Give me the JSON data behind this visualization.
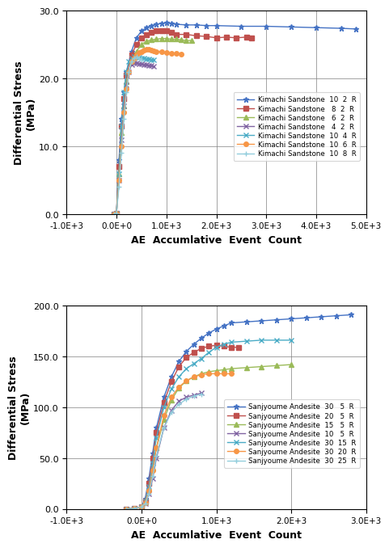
{
  "chart1": {
    "ylabel": "Differential Stress",
    "ylabel2": "(MPa)",
    "xlabel": "AE  Accumlative  Event  Count",
    "xlim": [
      -1000,
      5000
    ],
    "ylim": [
      0.0,
      30.0
    ],
    "yticks": [
      0.0,
      10.0,
      20.0,
      30.0
    ],
    "xticks": [
      -1000,
      0,
      1000,
      2000,
      3000,
      4000,
      5000
    ],
    "xtick_labels": [
      "-1.0E+3",
      "0.0E+0",
      "1.0E+3",
      "2.0E+3",
      "3.0E+3",
      "4.0E+3",
      "5.0E+3"
    ],
    "series": [
      {
        "label": "Kimachi Sandstone  10  2  R",
        "color": "#4472C4",
        "marker": "*",
        "markersize": 5,
        "x": [
          -50,
          0,
          50,
          100,
          150,
          200,
          300,
          400,
          500,
          600,
          700,
          800,
          900,
          1000,
          1100,
          1200,
          1400,
          1600,
          1800,
          2000,
          2500,
          3000,
          3500,
          4000,
          4500,
          4800
        ],
        "y": [
          0,
          0.1,
          8,
          14,
          18,
          21,
          24,
          26,
          27,
          27.5,
          27.8,
          28,
          28.1,
          28.2,
          28.1,
          28.0,
          27.9,
          27.9,
          27.8,
          27.8,
          27.7,
          27.7,
          27.6,
          27.5,
          27.4,
          27.3
        ]
      },
      {
        "label": "Kimachi Sandstone   8  2  R",
        "color": "#C0504D",
        "marker": "s",
        "markersize": 4,
        "x": [
          -50,
          0,
          50,
          100,
          150,
          200,
          300,
          400,
          500,
          600,
          700,
          800,
          900,
          1000,
          1100,
          1200,
          1400,
          1600,
          1800,
          2000,
          2200,
          2400,
          2600,
          2700
        ],
        "y": [
          0,
          0.1,
          7,
          13,
          17,
          20.5,
          23.5,
          25,
          26,
          26.5,
          26.8,
          27,
          27.1,
          27.0,
          26.8,
          26.5,
          26.5,
          26.3,
          26.2,
          26.0,
          26.1,
          26.0,
          26.1,
          26.0
        ]
      },
      {
        "label": "Kimachi Sandstone   6  2  R",
        "color": "#9BBB59",
        "marker": "^",
        "markersize": 4,
        "x": [
          -50,
          0,
          50,
          100,
          150,
          200,
          300,
          400,
          500,
          600,
          700,
          800,
          900,
          1000,
          1100,
          1200,
          1300,
          1400,
          1500
        ],
        "y": [
          0,
          0.1,
          6,
          12,
          16,
          19.5,
          22.5,
          24,
          25,
          25.5,
          25.7,
          25.8,
          25.9,
          25.9,
          25.8,
          25.8,
          25.7,
          25.6,
          25.6
        ]
      },
      {
        "label": "Kimachi Sandstone   4  2  R",
        "color": "#8064A2",
        "marker": "x",
        "markersize": 5,
        "x": [
          -50,
          0,
          50,
          100,
          150,
          200,
          250,
          300,
          350,
          400,
          450,
          500,
          550,
          600,
          650,
          700,
          750
        ],
        "y": [
          0,
          0.1,
          5,
          11,
          16,
          19,
          21,
          22,
          22.3,
          22.3,
          22.2,
          22.1,
          22.0,
          22.0,
          21.9,
          21.9,
          21.8
        ]
      },
      {
        "label": "Kimachi Sandstone  10  4  R",
        "color": "#4BACC6",
        "marker": "x",
        "markersize": 5,
        "x": [
          -50,
          0,
          50,
          100,
          150,
          200,
          250,
          300,
          350,
          400,
          450,
          500,
          550,
          600,
          650,
          700,
          750
        ],
        "y": [
          0,
          0.1,
          6,
          13,
          18,
          21,
          22.5,
          23,
          23.2,
          23.2,
          23.1,
          23.0,
          23.0,
          22.9,
          22.9,
          22.8,
          22.7
        ]
      },
      {
        "label": "Kimachi Sandstone  10  6  R",
        "color": "#F79646",
        "marker": "o",
        "markersize": 4,
        "x": [
          -50,
          0,
          50,
          100,
          150,
          200,
          250,
          300,
          350,
          400,
          450,
          500,
          550,
          600,
          650,
          700,
          750,
          800,
          900,
          1000,
          1100,
          1200,
          1300
        ],
        "y": [
          0,
          0.1,
          5,
          10,
          15,
          18.5,
          21,
          22.5,
          23,
          23.5,
          23.8,
          24,
          24.2,
          24.3,
          24.3,
          24.2,
          24.1,
          24.0,
          24.0,
          23.8,
          23.7,
          23.7,
          23.6
        ]
      },
      {
        "label": "Kimachi Sandstone  10  8  R",
        "color": "#92CDDC",
        "marker": "+",
        "markersize": 5,
        "x": [
          -50,
          0,
          50,
          100,
          150,
          200,
          250,
          300,
          350,
          400,
          450,
          500
        ],
        "y": [
          0,
          0.1,
          4,
          9,
          14,
          18,
          21,
          22.5,
          23,
          23.2,
          23.0,
          22.8
        ]
      }
    ]
  },
  "chart2": {
    "ylabel": "Differential Stress",
    "ylabel2": "(MPa)",
    "xlabel": "AE  Accumlative  Event  Count",
    "xlim": [
      -1000,
      3000
    ],
    "ylim": [
      0.0,
      200.0
    ],
    "yticks": [
      0.0,
      50.0,
      100.0,
      150.0,
      200.0
    ],
    "xticks": [
      -1000,
      0,
      1000,
      2000,
      3000
    ],
    "xtick_labels": [
      "-1.0E+3",
      "0.0E+0",
      "1.0E+3",
      "2.0E+3",
      "3.0E+3"
    ],
    "series": [
      {
        "label": "Sanjyoume Andesite  30   5  R",
        "color": "#4472C4",
        "marker": "*",
        "markersize": 5,
        "x": [
          -200,
          -100,
          0,
          50,
          100,
          150,
          200,
          300,
          400,
          500,
          600,
          700,
          800,
          900,
          1000,
          1100,
          1200,
          1400,
          1600,
          1800,
          2000,
          2200,
          2400,
          2600,
          2800
        ],
        "y": [
          0,
          0.5,
          2,
          10,
          30,
          55,
          80,
          110,
          130,
          145,
          155,
          162,
          168,
          173,
          177,
          180,
          183,
          184,
          185,
          186,
          187,
          188,
          189,
          190,
          191
        ]
      },
      {
        "label": "Sanjyoume Andesite  20   5  R",
        "color": "#C0504D",
        "marker": "s",
        "markersize": 4,
        "x": [
          -200,
          -100,
          0,
          50,
          100,
          150,
          200,
          300,
          400,
          500,
          600,
          700,
          800,
          900,
          1000,
          1100,
          1200,
          1300
        ],
        "y": [
          0,
          0.5,
          2,
          8,
          25,
          50,
          75,
          105,
          125,
          140,
          149,
          154,
          158,
          160,
          161,
          160,
          159,
          159
        ]
      },
      {
        "label": "Sanjyoume Andesite  15   5  R",
        "color": "#9BBB59",
        "marker": "^",
        "markersize": 4,
        "x": [
          -200,
          -100,
          0,
          50,
          100,
          150,
          200,
          300,
          400,
          500,
          600,
          700,
          800,
          900,
          1000,
          1100,
          1200,
          1400,
          1600,
          1800,
          2000
        ],
        "y": [
          0,
          0.5,
          2,
          7,
          20,
          40,
          60,
          88,
          107,
          119,
          126,
          130,
          133,
          135,
          136,
          137,
          138,
          139,
          140,
          141,
          142
        ]
      },
      {
        "label": "Sanjyoume Andesite  10   5  R",
        "color": "#8064A2",
        "marker": "x",
        "markersize": 5,
        "x": [
          -200,
          -100,
          0,
          50,
          100,
          150,
          200,
          300,
          400,
          500,
          600,
          700,
          800
        ],
        "y": [
          0,
          0.5,
          2,
          5,
          15,
          30,
          50,
          80,
          97,
          106,
          110,
          112,
          114
        ]
      },
      {
        "label": "Sanjyoume Andesite  30  15  R",
        "color": "#4BACC6",
        "marker": "x",
        "markersize": 5,
        "x": [
          -200,
          -100,
          0,
          50,
          100,
          150,
          200,
          300,
          400,
          500,
          600,
          700,
          800,
          900,
          1000,
          1100,
          1200,
          1400,
          1600,
          1800,
          2000
        ],
        "y": [
          0,
          0.5,
          2,
          8,
          22,
          45,
          70,
          100,
          118,
          130,
          138,
          143,
          148,
          154,
          159,
          162,
          164,
          165,
          166,
          166,
          166
        ]
      },
      {
        "label": "Sanjyoume Andesite  30  20  R",
        "color": "#F79646",
        "marker": "o",
        "markersize": 4,
        "x": [
          -200,
          -100,
          0,
          50,
          100,
          150,
          200,
          300,
          400,
          500,
          600,
          700,
          800,
          900,
          1000,
          1100,
          1200
        ],
        "y": [
          0,
          0.5,
          2,
          6,
          18,
          38,
          60,
          92,
          110,
          120,
          126,
          130,
          132,
          133,
          133,
          133,
          133
        ]
      },
      {
        "label": "Sanjyoume Andesite  30  25  R",
        "color": "#92CDDC",
        "marker": "+",
        "markersize": 5,
        "x": [
          -200,
          -100,
          0,
          50,
          100,
          150,
          200,
          300,
          400,
          500,
          600,
          700,
          800
        ],
        "y": [
          0,
          0.5,
          2,
          5,
          15,
          32,
          52,
          80,
          95,
          103,
          108,
          111,
          113
        ]
      }
    ]
  }
}
